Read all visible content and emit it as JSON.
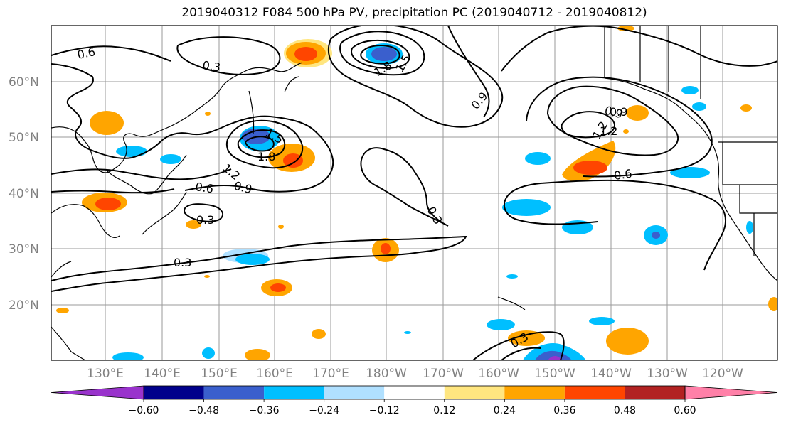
{
  "title": "2019040312 F084 500 hPa PV, precipitation PC (2019040712 - 2019040812)",
  "lat_labels": [
    "60°N",
    "50°N",
    "40°N",
    "30°N",
    "20°N"
  ],
  "lon_labels": [
    "130°E",
    "140°E",
    "150°E",
    "160°E",
    "170°E",
    "180°W",
    "170°W",
    "160°W",
    "150°W",
    "140°W",
    "130°W",
    "120°W"
  ],
  "contour_labels": [
    "0.6",
    "0.3",
    "1.5",
    "1.8",
    "1.5",
    "1.8",
    "1.2",
    "0.9",
    "1.2",
    "0.6",
    "0.9",
    "0.3",
    "0.3",
    "0.3",
    "0.9",
    "0.9",
    "1.2",
    "0.6",
    "0.3"
  ],
  "colorbar": {
    "ticks": [
      "−0.60",
      "−0.48",
      "−0.36",
      "−0.24",
      "−0.12",
      "0.12",
      "0.24",
      "0.36",
      "0.48",
      "0.60"
    ],
    "colors": [
      "#9933cc",
      "#00008b",
      "#3a5fcd",
      "#00bfff",
      "#b0e0ff",
      "#ffffff",
      "#ffe680",
      "#ffa500",
      "#ff4500",
      "#b22222",
      "#ff80a8"
    ]
  }
}
